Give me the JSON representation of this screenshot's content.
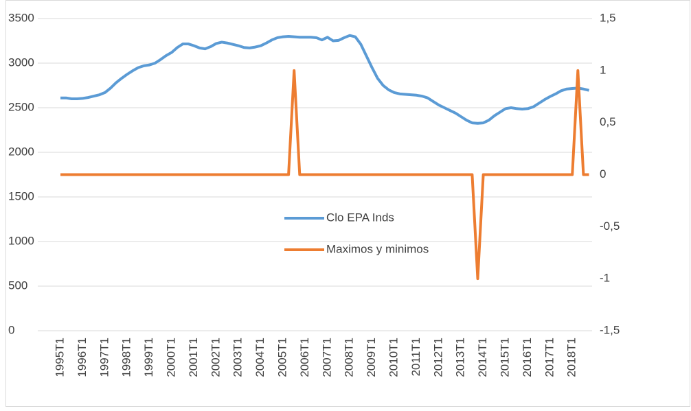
{
  "chart_data": {
    "type": "line",
    "categories": [
      "1995T1",
      null,
      null,
      null,
      "1996T1",
      null,
      null,
      null,
      "1997T1",
      null,
      null,
      null,
      "1998T1",
      null,
      null,
      null,
      "1999T1",
      null,
      null,
      null,
      "2000T1",
      null,
      null,
      null,
      "2001T1",
      null,
      null,
      null,
      "2002T1",
      null,
      null,
      null,
      "2003T1",
      null,
      null,
      null,
      "2004T1",
      null,
      null,
      null,
      "2005T1",
      null,
      null,
      null,
      "2006T1",
      null,
      null,
      null,
      "2007T1",
      null,
      null,
      null,
      "2008T1",
      null,
      null,
      null,
      "2009T1",
      null,
      null,
      null,
      "2010T1",
      null,
      null,
      null,
      "2011T1",
      null,
      null,
      null,
      "2012T1",
      null,
      null,
      null,
      "2013T1",
      null,
      null,
      null,
      "2014T1",
      null,
      null,
      null,
      "2015T1",
      null,
      null,
      null,
      "2016T1",
      null,
      null,
      null,
      "2017T1",
      null,
      null,
      null,
      "2018T1",
      null,
      null,
      null
    ],
    "series": [
      {
        "name": "Clo EPA Inds",
        "color": "#5b9bd5",
        "values": [
          2610,
          2610,
          2600,
          2600,
          2605,
          2615,
          2630,
          2645,
          2670,
          2720,
          2780,
          2830,
          2875,
          2915,
          2950,
          2970,
          2980,
          3000,
          3040,
          3085,
          3120,
          3175,
          3215,
          3215,
          3195,
          3170,
          3160,
          3185,
          3220,
          3235,
          3225,
          3210,
          3195,
          3175,
          3170,
          3180,
          3195,
          3225,
          3260,
          3285,
          3295,
          3300,
          3295,
          3290,
          3290,
          3290,
          3285,
          3260,
          3290,
          3250,
          3255,
          3285,
          3310,
          3295,
          3210,
          3080,
          2950,
          2830,
          2750,
          2700,
          2670,
          2655,
          2650,
          2645,
          2640,
          2630,
          2610,
          2570,
          2530,
          2500,
          2470,
          2440,
          2400,
          2360,
          2330,
          2325,
          2330,
          2360,
          2410,
          2450,
          2490,
          2500,
          2490,
          2485,
          2490,
          2510,
          2550,
          2590,
          2625,
          2655,
          2690,
          2710,
          2715,
          2720,
          2710,
          2695
        ]
      },
      {
        "name": "Maximos y minimos",
        "color": "#ed7d31",
        "axis": "y2",
        "values": [
          0,
          0,
          0,
          0,
          0,
          0,
          0,
          0,
          0,
          0,
          0,
          0,
          0,
          0,
          0,
          0,
          0,
          0,
          0,
          0,
          0,
          0,
          0,
          0,
          0,
          0,
          0,
          0,
          0,
          0,
          0,
          0,
          0,
          0,
          0,
          0,
          0,
          0,
          0,
          0,
          0,
          0,
          1,
          0,
          0,
          0,
          0,
          0,
          0,
          0,
          0,
          0,
          0,
          0,
          0,
          0,
          0,
          0,
          0,
          0,
          0,
          0,
          0,
          0,
          0,
          0,
          0,
          0,
          0,
          0,
          0,
          0,
          0,
          0,
          0,
          -1,
          0,
          0,
          0,
          0,
          0,
          0,
          0,
          0,
          0,
          0,
          0,
          0,
          0,
          0,
          0,
          0,
          0,
          1,
          0,
          0
        ]
      }
    ],
    "ylim": [
      0,
      3500
    ],
    "yticks": [
      0,
      500,
      1000,
      1500,
      2000,
      2500,
      3000,
      3500
    ],
    "y2lim": [
      -1.5,
      1.5
    ],
    "y2ticks": [
      {
        "value": -1.5,
        "label": "-1,5"
      },
      -1,
      {
        "value": -0.5,
        "label": "-0,5"
      },
      0,
      {
        "value": 0.5,
        "label": "0,5"
      },
      1,
      {
        "value": 1.5,
        "label": "1,5"
      }
    ],
    "grid": true,
    "legend": "center"
  }
}
